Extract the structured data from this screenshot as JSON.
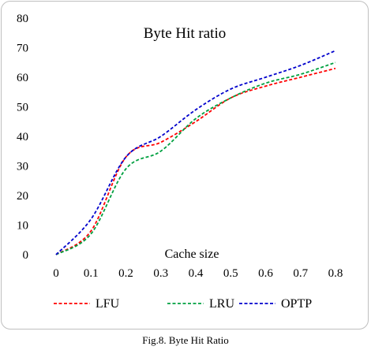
{
  "chart_data": {
    "type": "line",
    "title": "Byte Hit ratio",
    "xlabel": "Cache size",
    "ylabel": "",
    "x": [
      0,
      0.1,
      0.2,
      0.3,
      0.4,
      0.5,
      0.6,
      0.7,
      0.8
    ],
    "x_tick_labels": [
      "0",
      "0.1",
      "0.2",
      "0.3",
      "0.4",
      "0.5",
      "0.6",
      "0.7",
      "0.8"
    ],
    "xlim": [
      0,
      0.8
    ],
    "ylim": [
      0,
      80
    ],
    "y_ticks": [
      0,
      10,
      20,
      30,
      40,
      50,
      60,
      70,
      80
    ],
    "grid": false,
    "legend_position": "bottom",
    "series": [
      {
        "name": "LFU",
        "color": "#ff0000",
        "dash": true,
        "values": [
          0,
          8,
          33,
          38,
          45,
          53,
          57,
          60,
          63
        ]
      },
      {
        "name": "LRU",
        "color": "#00a040",
        "dash": true,
        "values": [
          0,
          7,
          29,
          35,
          46,
          53,
          58,
          61,
          65
        ]
      },
      {
        "name": "OPTP",
        "color": "#0000cc",
        "dash": true,
        "values": [
          0,
          12,
          33,
          40,
          49,
          56,
          60,
          64,
          69
        ]
      }
    ]
  },
  "caption": "Fig.8. Byte Hit Ratio"
}
